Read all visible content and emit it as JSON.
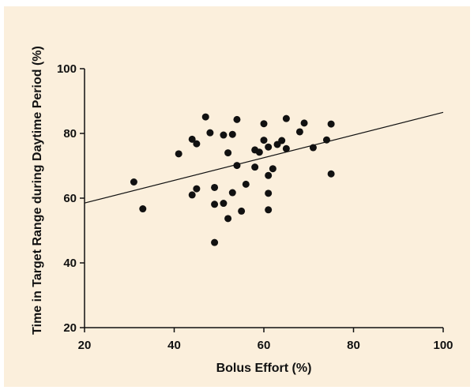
{
  "chart_data": {
    "type": "scatter",
    "title": "",
    "xlabel": "Bolus Effort (%)",
    "ylabel": "Time in Target Range during Daytime Period (%)",
    "xlim": [
      20,
      100
    ],
    "ylim": [
      20,
      100
    ],
    "xticks": [
      "20",
      "40",
      "60",
      "80",
      "100"
    ],
    "yticks": [
      "20",
      "40",
      "60",
      "80",
      "100"
    ],
    "grid": false,
    "legend": "none",
    "colors": {
      "background": "#fbefdc",
      "marker": "#111111",
      "line": "#111111"
    },
    "points": [
      {
        "x": 31,
        "y": 65
      },
      {
        "x": 33,
        "y": 56.7
      },
      {
        "x": 41,
        "y": 73.7
      },
      {
        "x": 44,
        "y": 78.2
      },
      {
        "x": 44,
        "y": 61
      },
      {
        "x": 45,
        "y": 76.8
      },
      {
        "x": 45,
        "y": 62.9
      },
      {
        "x": 47,
        "y": 85.1
      },
      {
        "x": 48,
        "y": 80.2
      },
      {
        "x": 49,
        "y": 63.3
      },
      {
        "x": 49,
        "y": 58.1
      },
      {
        "x": 49,
        "y": 46.3
      },
      {
        "x": 51,
        "y": 79.5
      },
      {
        "x": 51,
        "y": 58.4
      },
      {
        "x": 52,
        "y": 74
      },
      {
        "x": 52,
        "y": 53.7
      },
      {
        "x": 53,
        "y": 79.7
      },
      {
        "x": 53,
        "y": 61.7
      },
      {
        "x": 54,
        "y": 84.3
      },
      {
        "x": 54,
        "y": 70.1
      },
      {
        "x": 55,
        "y": 56
      },
      {
        "x": 56,
        "y": 64.3
      },
      {
        "x": 58,
        "y": 74.9
      },
      {
        "x": 58,
        "y": 69.6
      },
      {
        "x": 59,
        "y": 74.2
      },
      {
        "x": 60,
        "y": 83
      },
      {
        "x": 60,
        "y": 77.9
      },
      {
        "x": 61,
        "y": 75.8
      },
      {
        "x": 61,
        "y": 67
      },
      {
        "x": 61,
        "y": 61.5
      },
      {
        "x": 61,
        "y": 56.4
      },
      {
        "x": 62,
        "y": 69.1
      },
      {
        "x": 63,
        "y": 76.6
      },
      {
        "x": 64,
        "y": 77.8
      },
      {
        "x": 65,
        "y": 84.6
      },
      {
        "x": 65,
        "y": 75.3
      },
      {
        "x": 68,
        "y": 80.5
      },
      {
        "x": 69,
        "y": 83.2
      },
      {
        "x": 71,
        "y": 75.6
      },
      {
        "x": 74,
        "y": 78
      },
      {
        "x": 75,
        "y": 82.9
      },
      {
        "x": 75,
        "y": 67.5
      }
    ],
    "trendline": {
      "x": [
        20,
        100
      ],
      "y": [
        58.5,
        86.5
      ]
    }
  }
}
